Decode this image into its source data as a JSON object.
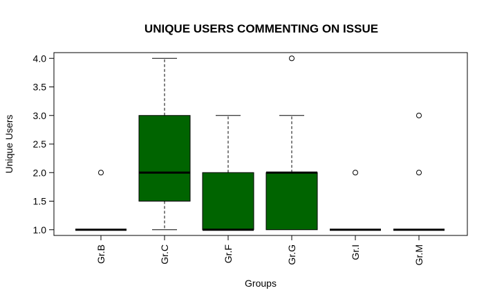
{
  "chart_data": {
    "type": "boxplot",
    "title": "UNIQUE USERS COMMENTING ON ISSUE",
    "xlabel": "Groups",
    "ylabel": "Unique Users",
    "ylim": [
      0.9,
      4.1
    ],
    "yticks": [
      "1.0",
      "1.5",
      "2.0",
      "2.5",
      "3.0",
      "3.5",
      "4.0"
    ],
    "grid": false,
    "box_color": "#006400",
    "categories": [
      "Gr.B",
      "Gr.C",
      "Gr.F",
      "Gr.G",
      "Gr.I",
      "Gr.M"
    ],
    "boxes": [
      {
        "min": 1.0,
        "q1": 1.0,
        "median": 1.0,
        "q3": 1.0,
        "max": 1.0,
        "outliers": [
          2.0
        ]
      },
      {
        "min": 1.0,
        "q1": 1.5,
        "median": 2.0,
        "q3": 3.0,
        "max": 4.0,
        "outliers": []
      },
      {
        "min": 1.0,
        "q1": 1.0,
        "median": 1.0,
        "q3": 2.0,
        "max": 3.0,
        "outliers": []
      },
      {
        "min": 1.0,
        "q1": 1.0,
        "median": 2.0,
        "q3": 2.0,
        "max": 3.0,
        "outliers": [
          4.0
        ]
      },
      {
        "min": 1.0,
        "q1": 1.0,
        "median": 1.0,
        "q3": 1.0,
        "max": 1.0,
        "outliers": [
          2.0
        ]
      },
      {
        "min": 1.0,
        "q1": 1.0,
        "median": 1.0,
        "q3": 1.0,
        "max": 1.0,
        "outliers": [
          2.0,
          3.0
        ]
      }
    ]
  }
}
